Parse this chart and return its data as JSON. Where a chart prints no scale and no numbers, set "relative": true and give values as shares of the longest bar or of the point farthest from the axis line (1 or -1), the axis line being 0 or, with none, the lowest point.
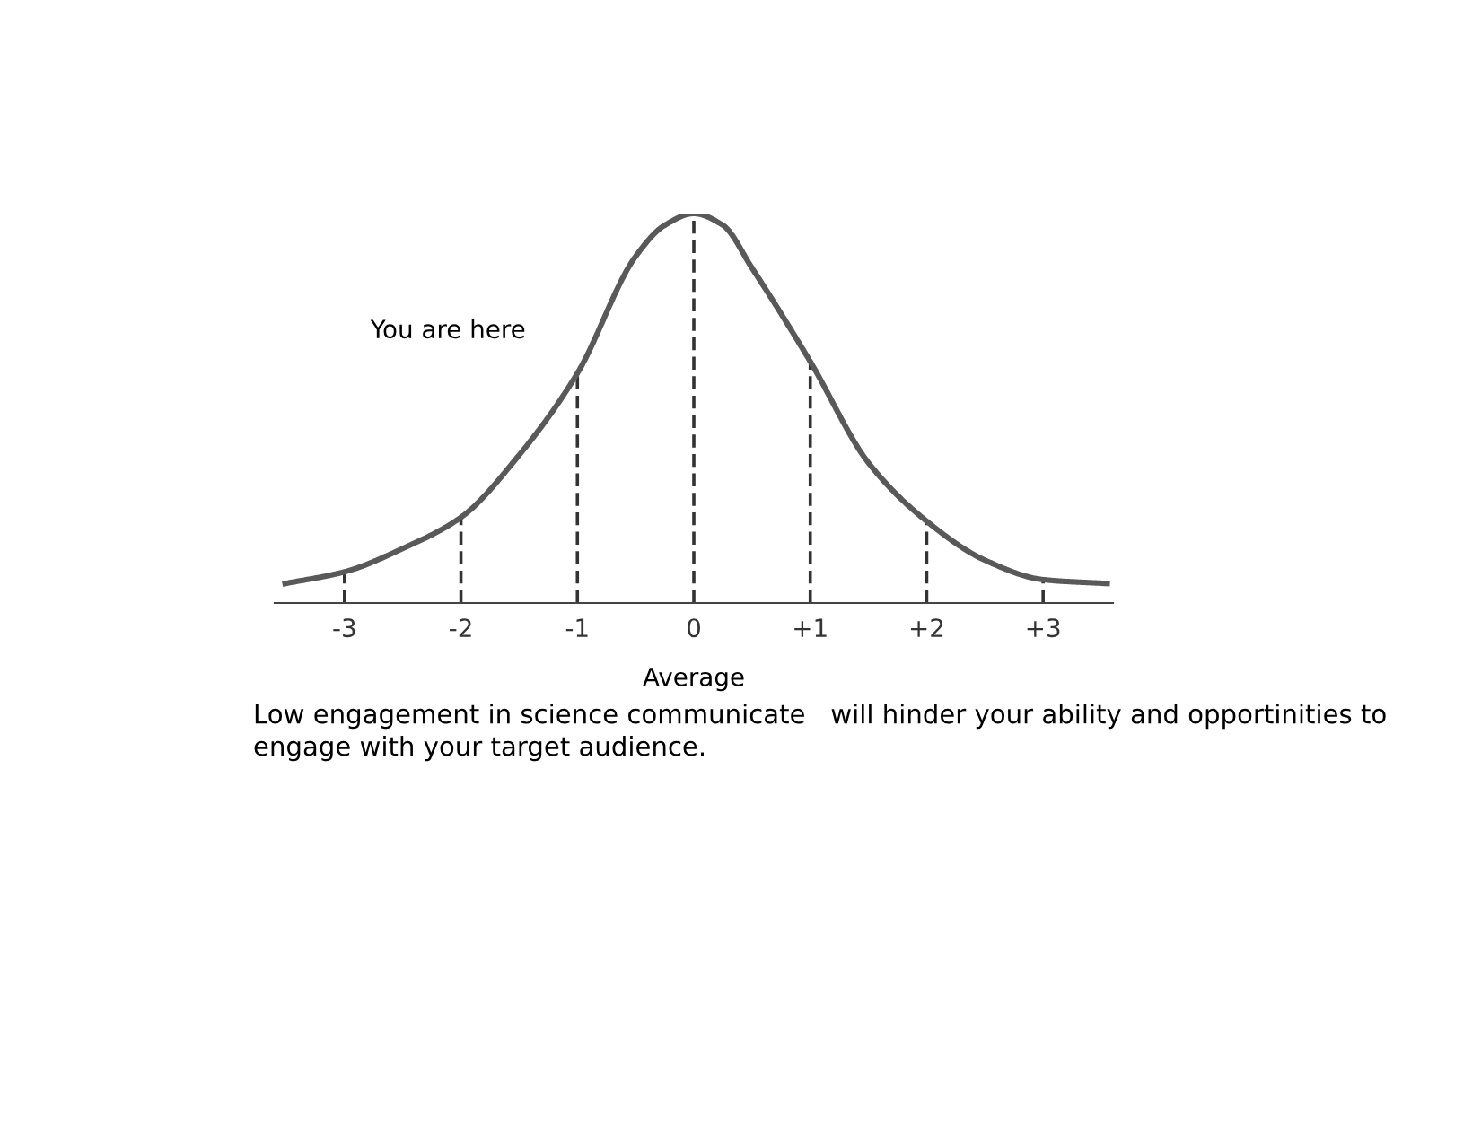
{
  "chart_data": {
    "type": "line",
    "relative": true,
    "xlabel": "Average",
    "x": [
      -3.51,
      -3.0,
      -2.5,
      -2.0,
      -1.5,
      -1.0,
      -0.5,
      -0.25,
      0,
      0.25,
      0.5,
      1.0,
      1.5,
      2.0,
      2.5,
      3.0,
      3.55
    ],
    "series": [
      {
        "color": "#595959",
        "values": [
          0.05,
          0.08,
          0.14,
          0.22,
          0.38,
          0.59,
          0.89,
          0.97,
          1.0,
          0.97,
          0.86,
          0.62,
          0.36,
          0.21,
          0.11,
          0.06,
          0.05
        ]
      }
    ],
    "xlim": [
      -3.6,
      3.6
    ],
    "xticks": [
      {
        "value": -3,
        "label": "-3"
      },
      {
        "value": -2,
        "label": "-2"
      },
      {
        "value": -1,
        "label": "-1"
      },
      0,
      {
        "value": 1,
        "label": "+1"
      },
      {
        "value": 2,
        "label": "+2"
      },
      {
        "value": 3,
        "label": "+3"
      }
    ],
    "ref_lines": [
      {
        "axis": "x",
        "value": -3,
        "line_style": "dashed",
        "color": "#333333"
      },
      {
        "axis": "x",
        "value": -2,
        "line_style": "dashed",
        "color": "#333333"
      },
      {
        "axis": "x",
        "value": -1,
        "line_style": "dashed",
        "color": "#333333"
      },
      {
        "axis": "x",
        "value": 0,
        "line_style": "dashed",
        "color": "#333333"
      },
      {
        "axis": "x",
        "value": 1,
        "line_style": "dashed",
        "color": "#333333"
      },
      {
        "axis": "x",
        "value": 2,
        "line_style": "dashed",
        "color": "#333333"
      },
      {
        "axis": "x",
        "value": 3,
        "line_style": "dashed",
        "color": "#333333"
      }
    ],
    "annotations": [
      {
        "text": "You are here",
        "x": -1,
        "y": 0.59
      },
      "Low engagement in science communicate   will hinder your ability and opportinities to engage with your target audience."
    ],
    "grid": false,
    "legend": false,
    "marker": "none",
    "line_style": "solid"
  }
}
